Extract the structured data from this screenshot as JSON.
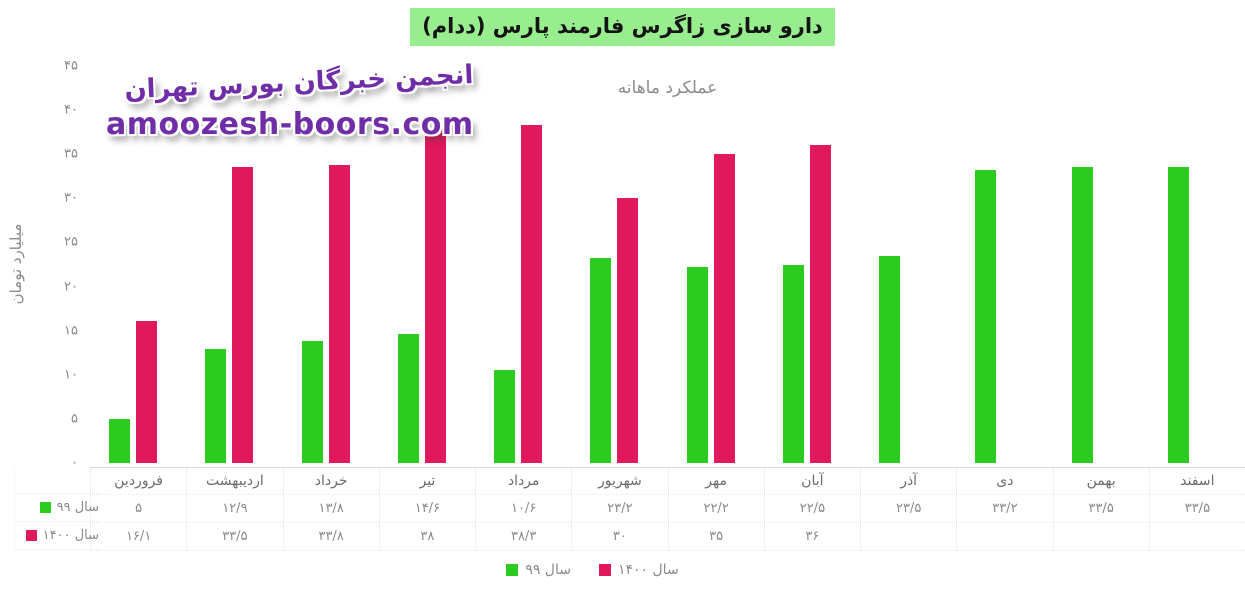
{
  "watermark": {
    "line1": "انجمن خبرگان بورس تهران",
    "line2": "amoozesh-boors.com",
    "color": "#6F2DA8"
  },
  "colors": {
    "series_99": "#2BCB20",
    "series_1400": "#E0195C",
    "title_highlight": "#98EE8E",
    "subtitle_gray": "#8b8b8b"
  },
  "y_axis": {
    "label": "میلیارد تومان",
    "ticks": [
      {
        "v": 45,
        "label": "۴۵"
      },
      {
        "v": 40,
        "label": "۴۰"
      },
      {
        "v": 35,
        "label": "۳۵"
      },
      {
        "v": 30,
        "label": "۳۰"
      },
      {
        "v": 25,
        "label": "۲۵"
      },
      {
        "v": 20,
        "label": "۲۰"
      },
      {
        "v": 15,
        "label": "۱۵"
      },
      {
        "v": 10,
        "label": "۱۰"
      },
      {
        "v": 5,
        "label": "۵"
      },
      {
        "v": 0,
        "label": "۰"
      }
    ]
  },
  "chart_data": {
    "type": "bar",
    "title": "دارو سازی زاگرس فارمند پارس (ددام)",
    "subtitle": "عملکرد ماهانه",
    "xlabel": "",
    "ylabel": "میلیارد تومان",
    "ylim": [
      0,
      45
    ],
    "grid": false,
    "legend_position": "bottom",
    "categories": [
      "فروردین",
      "اردیبهشت",
      "خرداد",
      "تیر",
      "مرداد",
      "شهریور",
      "مهر",
      "آبان",
      "آذر",
      "دی",
      "بهمن",
      "اسفند"
    ],
    "series": [
      {
        "name": "سال ۹۹",
        "color": "#2BCB20",
        "values": [
          5,
          12.9,
          13.8,
          14.6,
          10.6,
          23.2,
          22.2,
          22.5,
          23.5,
          33.2,
          33.5,
          33.5
        ],
        "display_labels": [
          "۵",
          "۱۲/۹",
          "۱۳/۸",
          "۱۴/۶",
          "۱۰/۶",
          "۲۳/۲",
          "۲۲/۲",
          "۲۲/۵",
          "۲۳/۵",
          "۳۳/۲",
          "۳۳/۵",
          "۳۳/۵"
        ]
      },
      {
        "name": "سال ۱۴۰۰",
        "color": "#E0195C",
        "values": [
          16.1,
          33.5,
          33.8,
          38,
          38.3,
          30,
          35,
          36,
          null,
          null,
          null,
          null
        ],
        "display_labels": [
          "۱۶/۱",
          "۳۳/۵",
          "۳۳/۸",
          "۳۸",
          "۳۸/۳",
          "۳۰",
          "۳۵",
          "۳۶",
          "",
          "",
          "",
          ""
        ]
      }
    ]
  }
}
